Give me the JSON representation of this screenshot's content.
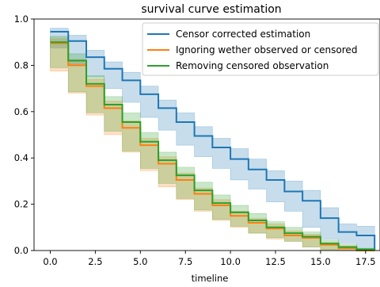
{
  "chart_data": {
    "type": "line",
    "step": true,
    "title": "survival curve estimation",
    "xlabel": "timeline",
    "ylabel": "",
    "xlim": [
      -0.9,
      18.3
    ],
    "ylim": [
      0.0,
      1.0
    ],
    "xticks": [
      0.0,
      2.5,
      5.0,
      7.5,
      10.0,
      12.5,
      15.0,
      17.5
    ],
    "xtick_labels": [
      "0.0",
      "2.5",
      "5.0",
      "7.5",
      "10.0",
      "12.5",
      "15.0",
      "17.5"
    ],
    "yticks": [
      0.0,
      0.2,
      0.4,
      0.6,
      0.8,
      1.0
    ],
    "ytick_labels": [
      "0.0",
      "0.2",
      "0.4",
      "0.6",
      "0.8",
      "1.0"
    ],
    "grid": false,
    "legend_position": "upper right",
    "series": [
      {
        "name": "Censor corrected estimation",
        "color": "#1f77b4",
        "x": [
          0,
          1,
          2,
          3,
          4,
          5,
          6,
          7,
          8,
          9,
          10,
          11,
          12,
          13,
          14,
          15,
          16,
          17,
          18
        ],
        "y": [
          0.945,
          0.905,
          0.835,
          0.785,
          0.735,
          0.675,
          0.615,
          0.555,
          0.495,
          0.445,
          0.395,
          0.35,
          0.305,
          0.255,
          0.215,
          0.14,
          0.08,
          0.065,
          0.0
        ],
        "ci_lower": [
          0.925,
          0.875,
          0.805,
          0.75,
          0.7,
          0.64,
          0.575,
          0.52,
          0.455,
          0.405,
          0.355,
          0.305,
          0.265,
          0.21,
          0.17,
          0.1,
          0.05,
          0.03,
          0.0
        ],
        "ci_upper": [
          0.96,
          0.93,
          0.865,
          0.815,
          0.77,
          0.71,
          0.65,
          0.595,
          0.535,
          0.485,
          0.44,
          0.395,
          0.345,
          0.3,
          0.26,
          0.185,
          0.115,
          0.105,
          0.0
        ]
      },
      {
        "name": "Ignoring wether observed or censored",
        "color": "#ff7f0e",
        "x": [
          0,
          1,
          2,
          3,
          4,
          5,
          6,
          7,
          8,
          9,
          10,
          11,
          12,
          13,
          14,
          15,
          16,
          17,
          18
        ],
        "y": [
          0.895,
          0.8,
          0.71,
          0.615,
          0.53,
          0.455,
          0.375,
          0.305,
          0.245,
          0.195,
          0.15,
          0.12,
          0.095,
          0.065,
          0.055,
          0.025,
          0.01,
          0.0,
          0.0
        ],
        "ci_lower": [
          0.875,
          0.775,
          0.68,
          0.585,
          0.5,
          0.425,
          0.345,
          0.275,
          0.22,
          0.17,
          0.13,
          0.1,
          0.075,
          0.05,
          0.04,
          0.015,
          0.003,
          0.0,
          0.0
        ],
        "ci_upper": [
          0.915,
          0.825,
          0.74,
          0.645,
          0.56,
          0.485,
          0.405,
          0.335,
          0.27,
          0.22,
          0.17,
          0.14,
          0.115,
          0.085,
          0.07,
          0.035,
          0.02,
          0.0,
          0.0
        ]
      },
      {
        "name": "Removing censored observation",
        "color": "#2ca02c",
        "x": [
          0,
          1,
          2,
          3,
          4,
          5,
          6,
          7,
          8,
          9,
          10,
          11,
          12,
          13,
          14,
          15,
          16,
          17,
          18
        ],
        "y": [
          0.9,
          0.82,
          0.72,
          0.63,
          0.555,
          0.47,
          0.39,
          0.325,
          0.26,
          0.205,
          0.165,
          0.13,
          0.1,
          0.075,
          0.06,
          0.03,
          0.015,
          0.005,
          0.0
        ],
        "ci_lower": [
          0.875,
          0.79,
          0.685,
          0.595,
          0.515,
          0.43,
          0.355,
          0.29,
          0.225,
          0.175,
          0.135,
          0.105,
          0.075,
          0.055,
          0.04,
          0.015,
          0.003,
          0.0,
          0.0
        ],
        "ci_upper": [
          0.925,
          0.85,
          0.755,
          0.665,
          0.595,
          0.51,
          0.425,
          0.36,
          0.295,
          0.24,
          0.195,
          0.16,
          0.125,
          0.1,
          0.08,
          0.045,
          0.025,
          0.01,
          0.0
        ]
      }
    ]
  }
}
